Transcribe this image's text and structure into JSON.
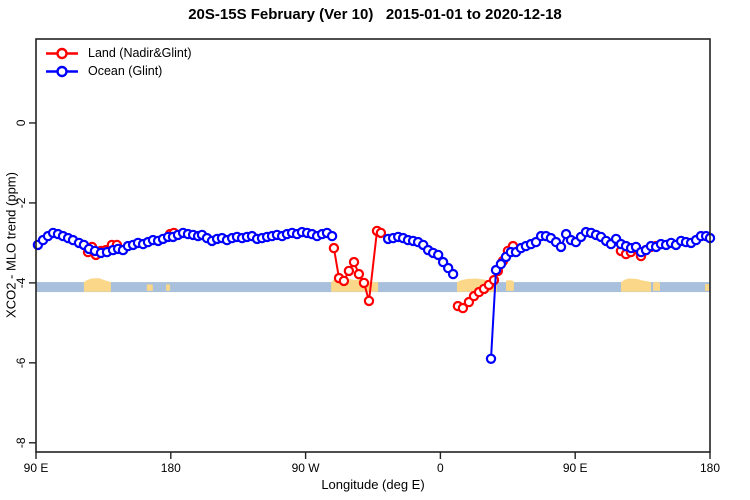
{
  "title": "20S-15S February (Ver 10)   2015-01-01 to 2020-12-18",
  "chart_data": {
    "type": "line",
    "title": "20S-15S February (Ver 10)   2015-01-01 to 2020-12-18",
    "xlabel": "Longitude (deg E)",
    "ylabel": "XCO2 - MLO trend (ppm)",
    "grid": false,
    "legend_position": "top-left",
    "x_axis": {
      "range": [
        90,
        540
      ],
      "ticks": [
        90,
        180,
        270,
        360,
        450,
        540
      ],
      "tick_labels": [
        "90 E",
        "180",
        "90 W",
        "0",
        "90 E",
        "180"
      ],
      "note": "longitude axis runs eastward from 90E across the dateline to 180 again (450 deg span)"
    },
    "y_axis": {
      "range": [
        2.1,
        -8.23
      ],
      "ticks": [
        0,
        -2,
        -4,
        -6,
        -8
      ],
      "tick_labels": [
        "0",
        "-2",
        "-4",
        "-6",
        "-8"
      ]
    },
    "legend": [
      {
        "label": "Land (Nadir&Glint)",
        "color": "#ff0000"
      },
      {
        "label": "Ocean (Glint)",
        "color": "#0000ff"
      }
    ],
    "ocean_band": {
      "y_top": -3.98,
      "y_bottom": -4.23,
      "color": "#a8c0dc"
    },
    "land_color": "#fbd78a",
    "land_patches": [
      {
        "name": "australia",
        "bottom": -4.22,
        "profile": [
          [
            122,
            -3.98
          ],
          [
            124,
            -3.93
          ],
          [
            127,
            -3.89
          ],
          [
            132,
            -3.88
          ],
          [
            135,
            -3.92
          ],
          [
            138,
            -3.96
          ],
          [
            140,
            -3.98
          ]
        ]
      },
      {
        "name": "new-caledonia",
        "bottom": -4.2,
        "profile": [
          [
            164,
            -4.04
          ],
          [
            168,
            -4.04
          ]
        ]
      },
      {
        "name": "fiji",
        "bottom": -4.2,
        "profile": [
          [
            176.8,
            -4.04
          ],
          [
            179.5,
            -4.04
          ]
        ]
      },
      {
        "name": "south-america",
        "bottom": -4.22,
        "profile": [
          [
            287,
            -3.98
          ],
          [
            289,
            -3.92
          ],
          [
            293,
            -3.89
          ],
          [
            299,
            -3.9
          ],
          [
            303,
            -3.93
          ],
          [
            306,
            -3.9
          ],
          [
            310,
            -3.95
          ],
          [
            314,
            -3.98
          ],
          [
            318.4,
            -3.98
          ]
        ]
      },
      {
        "name": "africa",
        "bottom": -4.22,
        "profile": [
          [
            371.1,
            -3.98
          ],
          [
            374,
            -3.93
          ],
          [
            378,
            -3.9
          ],
          [
            384,
            -3.89
          ],
          [
            390,
            -3.92
          ],
          [
            394,
            -3.95
          ],
          [
            397.8,
            -3.98
          ]
        ]
      },
      {
        "name": "madagascar",
        "bottom": -4.2,
        "profile": [
          [
            403.8,
            -3.96
          ],
          [
            405,
            -3.93
          ],
          [
            408,
            -3.94
          ],
          [
            409.1,
            -3.97
          ]
        ]
      },
      {
        "name": "australia-repeat",
        "bottom": -4.22,
        "profile": [
          [
            480.6,
            -3.98
          ],
          [
            483,
            -3.92
          ],
          [
            486,
            -3.89
          ],
          [
            491,
            -3.9
          ],
          [
            495,
            -3.94
          ],
          [
            498,
            -3.96
          ],
          [
            500.6,
            -3.98
          ]
        ]
      },
      {
        "name": "cape-york-repeat",
        "bottom": -4.2,
        "profile": [
          [
            502,
            -4.0
          ],
          [
            504,
            -3.97
          ],
          [
            506.6,
            -4.0
          ]
        ]
      },
      {
        "name": "fiji-repeat",
        "bottom": -4.2,
        "profile": [
          [
            536.7,
            -4.03
          ],
          [
            539.4,
            -4.03
          ]
        ]
      }
    ],
    "series": [
      {
        "name": "Land (Nadir&Glint)",
        "color": "#ff0000",
        "segments": [
          [
            [
              124.7,
              -3.23
            ],
            [
              127.4,
              -3.1
            ],
            [
              130,
              -3.3
            ],
            [
              133.4,
              -3.2
            ],
            [
              136.7,
              -3.18
            ],
            [
              140.7,
              -3.05
            ],
            [
              144,
              -3.05
            ]
          ],
          [
            [
              179.5,
              -2.78
            ],
            [
              182.1,
              -2.75
            ]
          ],
          [
            [
              288.9,
              -3.13
            ],
            [
              292.3,
              -3.88
            ],
            [
              295.6,
              -3.95
            ],
            [
              298.9,
              -3.7
            ],
            [
              302.3,
              -3.48
            ],
            [
              305.6,
              -3.78
            ],
            [
              309,
              -4.0
            ],
            [
              312.3,
              -4.45
            ],
            [
              317.7,
              -2.7
            ],
            [
              320.3,
              -2.75
            ]
          ],
          [
            [
              371.7,
              -4.58
            ],
            [
              375,
              -4.63
            ],
            [
              379,
              -4.48
            ],
            [
              382.4,
              -4.33
            ],
            [
              385.8,
              -4.23
            ],
            [
              389.1,
              -4.15
            ],
            [
              392.4,
              -4.05
            ],
            [
              395.8,
              -3.93
            ],
            [
              398.4,
              -3.7
            ],
            [
              401.8,
              -3.45
            ],
            [
              405.1,
              -3.2
            ],
            [
              408.5,
              -3.08
            ]
          ],
          [
            [
              480.5,
              -3.2
            ],
            [
              483.9,
              -3.28
            ],
            [
              487.2,
              -3.23
            ],
            [
              490.5,
              -3.15
            ],
            [
              493.9,
              -3.33
            ],
            [
              497.2,
              -3.18
            ],
            [
              500.5,
              -3.1
            ],
            [
              503.9,
              -3.08
            ]
          ]
        ]
      },
      {
        "name": "Ocean (Glint)",
        "color": "#0000ff",
        "segments": [
          [
            [
              91.3,
              -3.05
            ],
            [
              94.7,
              -2.93
            ],
            [
              98,
              -2.83
            ],
            [
              101.4,
              -2.75
            ],
            [
              104.7,
              -2.78
            ],
            [
              108,
              -2.83
            ],
            [
              111.4,
              -2.88
            ],
            [
              114.7,
              -2.93
            ],
            [
              118.7,
              -3.0
            ],
            [
              122,
              -3.05
            ],
            [
              125.4,
              -3.15
            ],
            [
              129.4,
              -3.2
            ],
            [
              133.4,
              -3.25
            ],
            [
              137.4,
              -3.23
            ],
            [
              141.4,
              -3.18
            ],
            [
              144.8,
              -3.15
            ],
            [
              148.1,
              -3.18
            ],
            [
              151.4,
              -3.08
            ],
            [
              154.8,
              -3.05
            ],
            [
              158.1,
              -3.0
            ],
            [
              161.5,
              -3.03
            ],
            [
              164.8,
              -2.98
            ],
            [
              168.1,
              -2.93
            ],
            [
              171.5,
              -2.95
            ],
            [
              174.8,
              -2.9
            ],
            [
              178.2,
              -2.85
            ],
            [
              181.5,
              -2.85
            ],
            [
              184.8,
              -2.8
            ],
            [
              188.2,
              -2.75
            ],
            [
              191.5,
              -2.78
            ],
            [
              194.9,
              -2.8
            ],
            [
              198.2,
              -2.83
            ],
            [
              200.8,
              -2.8
            ],
            [
              204.2,
              -2.88
            ],
            [
              207.5,
              -2.95
            ],
            [
              210.9,
              -2.9
            ],
            [
              214.2,
              -2.88
            ],
            [
              217.5,
              -2.93
            ],
            [
              220.9,
              -2.88
            ],
            [
              224.2,
              -2.85
            ],
            [
              227.6,
              -2.88
            ],
            [
              230.9,
              -2.85
            ],
            [
              234.2,
              -2.83
            ],
            [
              237.6,
              -2.9
            ],
            [
              240.9,
              -2.88
            ],
            [
              244.3,
              -2.85
            ],
            [
              247.6,
              -2.83
            ],
            [
              250.9,
              -2.8
            ],
            [
              254.3,
              -2.83
            ],
            [
              257.6,
              -2.78
            ],
            [
              261,
              -2.75
            ],
            [
              264.3,
              -2.78
            ],
            [
              267.6,
              -2.73
            ],
            [
              271,
              -2.75
            ],
            [
              274.3,
              -2.78
            ],
            [
              277.7,
              -2.83
            ],
            [
              281,
              -2.78
            ],
            [
              284.3,
              -2.75
            ],
            [
              287.7,
              -2.83
            ]
          ],
          [
            [
              325.1,
              -2.9
            ],
            [
              328.4,
              -2.88
            ],
            [
              331.8,
              -2.85
            ],
            [
              335.1,
              -2.88
            ],
            [
              338.4,
              -2.93
            ],
            [
              341.8,
              -2.95
            ],
            [
              345.1,
              -2.98
            ],
            [
              348.5,
              -3.05
            ],
            [
              351.8,
              -3.18
            ],
            [
              355.1,
              -3.25
            ],
            [
              358.5,
              -3.3
            ],
            [
              361.8,
              -3.48
            ],
            [
              365.2,
              -3.63
            ],
            [
              368.5,
              -3.78
            ]
          ],
          [
            [
              393.8,
              -5.9
            ],
            [
              397.1,
              -3.68
            ],
            [
              400.4,
              -3.53
            ],
            [
              403.8,
              -3.35
            ],
            [
              407.1,
              -3.23
            ],
            [
              410.5,
              -3.23
            ],
            [
              413.8,
              -3.13
            ],
            [
              417.1,
              -3.08
            ],
            [
              420.5,
              -3.03
            ],
            [
              423.8,
              -2.98
            ],
            [
              427.2,
              -2.83
            ],
            [
              430.5,
              -2.83
            ],
            [
              433.8,
              -2.88
            ],
            [
              437.2,
              -2.98
            ],
            [
              440.5,
              -3.1
            ],
            [
              443.9,
              -2.78
            ],
            [
              447.2,
              -2.93
            ],
            [
              450.5,
              -2.98
            ],
            [
              453.9,
              -2.85
            ],
            [
              457.2,
              -2.73
            ],
            [
              460.6,
              -2.75
            ],
            [
              463.9,
              -2.8
            ],
            [
              467.2,
              -2.85
            ],
            [
              470.6,
              -2.95
            ],
            [
              473.9,
              -3.03
            ],
            [
              477.3,
              -2.9
            ],
            [
              480.6,
              -3.03
            ],
            [
              483.9,
              -3.08
            ],
            [
              487.3,
              -3.13
            ],
            [
              490.6,
              -3.1
            ],
            [
              494,
              -3.23
            ],
            [
              497.3,
              -3.18
            ],
            [
              500.6,
              -3.08
            ],
            [
              504,
              -3.1
            ],
            [
              507.3,
              -3.03
            ],
            [
              510.7,
              -3.05
            ],
            [
              514,
              -3.0
            ],
            [
              517.3,
              -3.05
            ],
            [
              520.7,
              -2.95
            ],
            [
              524,
              -2.98
            ],
            [
              527.4,
              -3.0
            ],
            [
              530.7,
              -2.93
            ],
            [
              534,
              -2.83
            ],
            [
              537.4,
              -2.83
            ],
            [
              540,
              -2.88
            ]
          ]
        ]
      }
    ]
  }
}
